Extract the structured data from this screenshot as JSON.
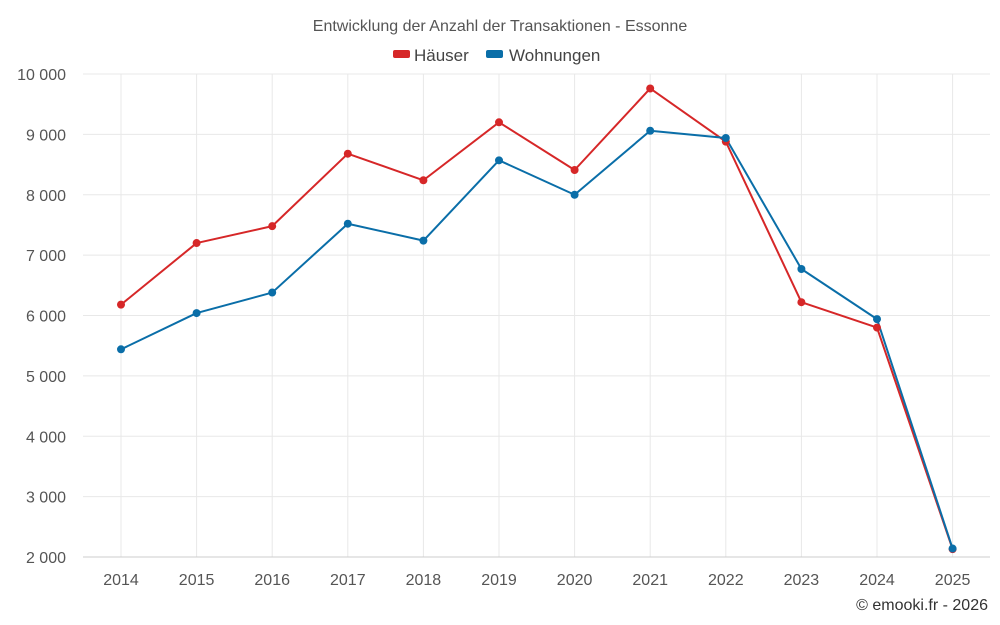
{
  "chart_data": {
    "type": "line",
    "title": "Entwicklung der Anzahl der Transaktionen - Essonne",
    "categories": [
      "2014",
      "2015",
      "2016",
      "2017",
      "2018",
      "2019",
      "2020",
      "2021",
      "2022",
      "2023",
      "2024",
      "2025"
    ],
    "series": [
      {
        "name": "Häuser",
        "color": "#d62728",
        "values": [
          6180,
          7200,
          7480,
          8680,
          8240,
          9200,
          8410,
          9760,
          8880,
          6220,
          5800,
          2130
        ]
      },
      {
        "name": "Wohnungen",
        "color": "#0a6ea8",
        "values": [
          5440,
          6040,
          6380,
          7520,
          7240,
          8570,
          8000,
          9060,
          8940,
          6770,
          5940,
          2140
        ]
      }
    ],
    "ylim": [
      2000,
      10000
    ],
    "yticks": [
      2000,
      3000,
      4000,
      5000,
      6000,
      7000,
      8000,
      9000,
      10000
    ],
    "ytick_labels": [
      "2 000",
      "3 000",
      "4 000",
      "5 000",
      "6 000",
      "7 000",
      "8 000",
      "9 000",
      "10 000"
    ],
    "grid": true,
    "legend": "top-center",
    "xlabel": "",
    "ylabel": ""
  },
  "credit": "© emooki.fr - 2026"
}
